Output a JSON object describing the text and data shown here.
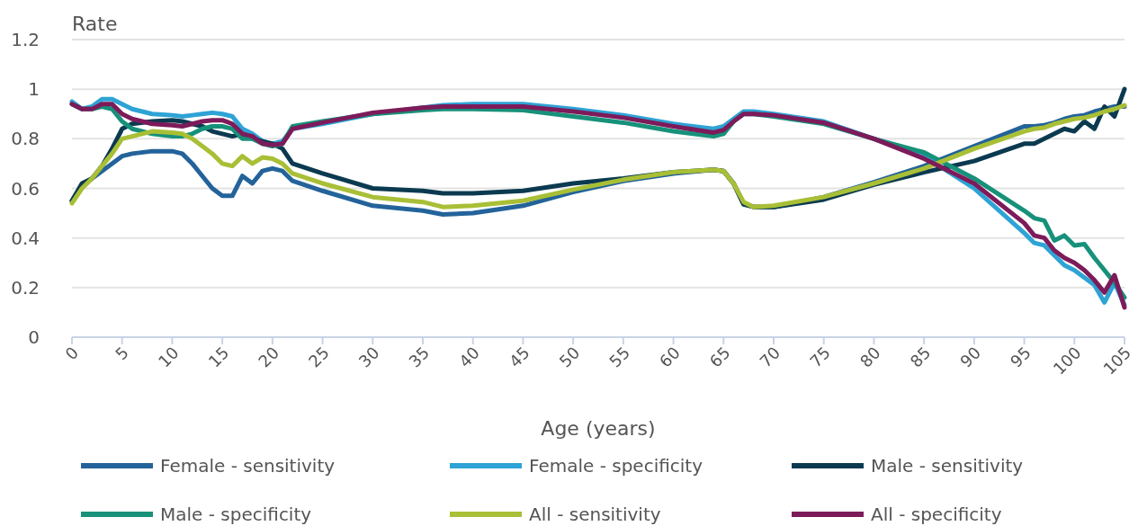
{
  "chart_data": {
    "type": "line",
    "ylabel": "Rate",
    "xlabel": "Age (years)",
    "x": [
      0,
      1,
      2,
      3,
      4,
      5,
      6,
      8,
      10,
      11,
      12,
      13,
      14,
      15,
      16,
      17,
      18,
      19,
      20,
      21,
      22,
      25,
      30,
      35,
      37,
      40,
      45,
      50,
      55,
      60,
      64,
      65,
      66,
      67,
      68,
      70,
      75,
      80,
      85,
      90,
      95,
      96,
      97,
      98,
      99,
      100,
      101,
      102,
      103,
      104,
      105
    ],
    "xlim": [
      0,
      105
    ],
    "xticks": [
      0,
      5,
      10,
      15,
      20,
      25,
      30,
      35,
      40,
      45,
      50,
      55,
      60,
      65,
      70,
      75,
      80,
      85,
      90,
      95,
      100,
      105
    ],
    "ylim": [
      0,
      1.2
    ],
    "yticks": [
      0,
      0.2,
      0.4,
      0.6,
      0.8,
      1,
      1.2
    ],
    "grid": "y",
    "legend": "bottom",
    "marker": "none",
    "line_style": "solid",
    "series": [
      {
        "name": "Female - sensitivity",
        "color": "#23639a",
        "values": [
          0.55,
          0.61,
          0.64,
          0.67,
          0.7,
          0.73,
          0.74,
          0.75,
          0.75,
          0.74,
          0.7,
          0.65,
          0.6,
          0.57,
          0.57,
          0.65,
          0.62,
          0.67,
          0.68,
          0.67,
          0.63,
          0.59,
          0.53,
          0.51,
          0.495,
          0.5,
          0.53,
          0.585,
          0.63,
          0.66,
          0.675,
          0.67,
          0.62,
          0.54,
          0.525,
          0.525,
          0.565,
          0.625,
          0.69,
          0.77,
          0.85,
          0.85,
          0.855,
          0.865,
          0.88,
          0.89,
          0.895,
          0.91,
          0.92,
          0.93,
          0.93
        ]
      },
      {
        "name": "Female - specificity",
        "color": "#2ea3d5",
        "values": [
          0.95,
          0.92,
          0.93,
          0.96,
          0.96,
          0.94,
          0.92,
          0.9,
          0.895,
          0.89,
          0.895,
          0.9,
          0.905,
          0.9,
          0.89,
          0.84,
          0.82,
          0.79,
          0.78,
          0.79,
          0.84,
          0.86,
          0.9,
          0.925,
          0.935,
          0.94,
          0.94,
          0.92,
          0.895,
          0.86,
          0.84,
          0.85,
          0.88,
          0.91,
          0.91,
          0.9,
          0.87,
          0.8,
          0.73,
          0.6,
          0.42,
          0.38,
          0.37,
          0.33,
          0.29,
          0.27,
          0.24,
          0.21,
          0.14,
          0.22,
          0.13
        ]
      },
      {
        "name": "Male - sensitivity",
        "color": "#0b3a50",
        "values": [
          0.55,
          0.62,
          0.64,
          0.69,
          0.76,
          0.84,
          0.86,
          0.87,
          0.875,
          0.87,
          0.86,
          0.85,
          0.83,
          0.82,
          0.81,
          0.82,
          0.8,
          0.79,
          0.78,
          0.76,
          0.7,
          0.66,
          0.6,
          0.59,
          0.58,
          0.58,
          0.59,
          0.62,
          0.64,
          0.665,
          0.675,
          0.67,
          0.62,
          0.535,
          0.525,
          0.525,
          0.555,
          0.615,
          0.665,
          0.71,
          0.78,
          0.78,
          0.8,
          0.82,
          0.84,
          0.83,
          0.87,
          0.84,
          0.93,
          0.89,
          1.0
        ]
      },
      {
        "name": "Male - specificity",
        "color": "#17917a",
        "values": [
          0.94,
          0.92,
          0.92,
          0.93,
          0.92,
          0.87,
          0.84,
          0.82,
          0.81,
          0.81,
          0.82,
          0.84,
          0.85,
          0.85,
          0.84,
          0.8,
          0.8,
          0.78,
          0.77,
          0.78,
          0.85,
          0.87,
          0.9,
          0.915,
          0.92,
          0.92,
          0.915,
          0.89,
          0.865,
          0.83,
          0.81,
          0.82,
          0.87,
          0.9,
          0.9,
          0.89,
          0.86,
          0.8,
          0.745,
          0.64,
          0.51,
          0.48,
          0.47,
          0.39,
          0.41,
          0.37,
          0.375,
          0.32,
          0.27,
          0.22,
          0.16
        ]
      },
      {
        "name": "All - sensitivity",
        "color": "#a8bf36",
        "values": [
          0.54,
          0.6,
          0.64,
          0.69,
          0.74,
          0.8,
          0.81,
          0.83,
          0.825,
          0.82,
          0.8,
          0.77,
          0.74,
          0.7,
          0.69,
          0.73,
          0.7,
          0.725,
          0.72,
          0.7,
          0.66,
          0.62,
          0.565,
          0.545,
          0.525,
          0.53,
          0.55,
          0.595,
          0.635,
          0.665,
          0.675,
          0.67,
          0.62,
          0.545,
          0.525,
          0.53,
          0.565,
          0.62,
          0.68,
          0.76,
          0.83,
          0.84,
          0.845,
          0.86,
          0.87,
          0.88,
          0.885,
          0.895,
          0.91,
          0.92,
          0.935
        ]
      },
      {
        "name": "All - specificity",
        "color": "#7d1b5a",
        "values": [
          0.94,
          0.92,
          0.92,
          0.94,
          0.94,
          0.9,
          0.88,
          0.86,
          0.855,
          0.85,
          0.86,
          0.87,
          0.875,
          0.875,
          0.86,
          0.82,
          0.81,
          0.78,
          0.775,
          0.78,
          0.84,
          0.865,
          0.905,
          0.925,
          0.93,
          0.93,
          0.93,
          0.91,
          0.885,
          0.85,
          0.825,
          0.835,
          0.87,
          0.9,
          0.9,
          0.895,
          0.865,
          0.8,
          0.72,
          0.62,
          0.46,
          0.41,
          0.4,
          0.35,
          0.32,
          0.3,
          0.27,
          0.23,
          0.18,
          0.25,
          0.12
        ]
      }
    ]
  }
}
